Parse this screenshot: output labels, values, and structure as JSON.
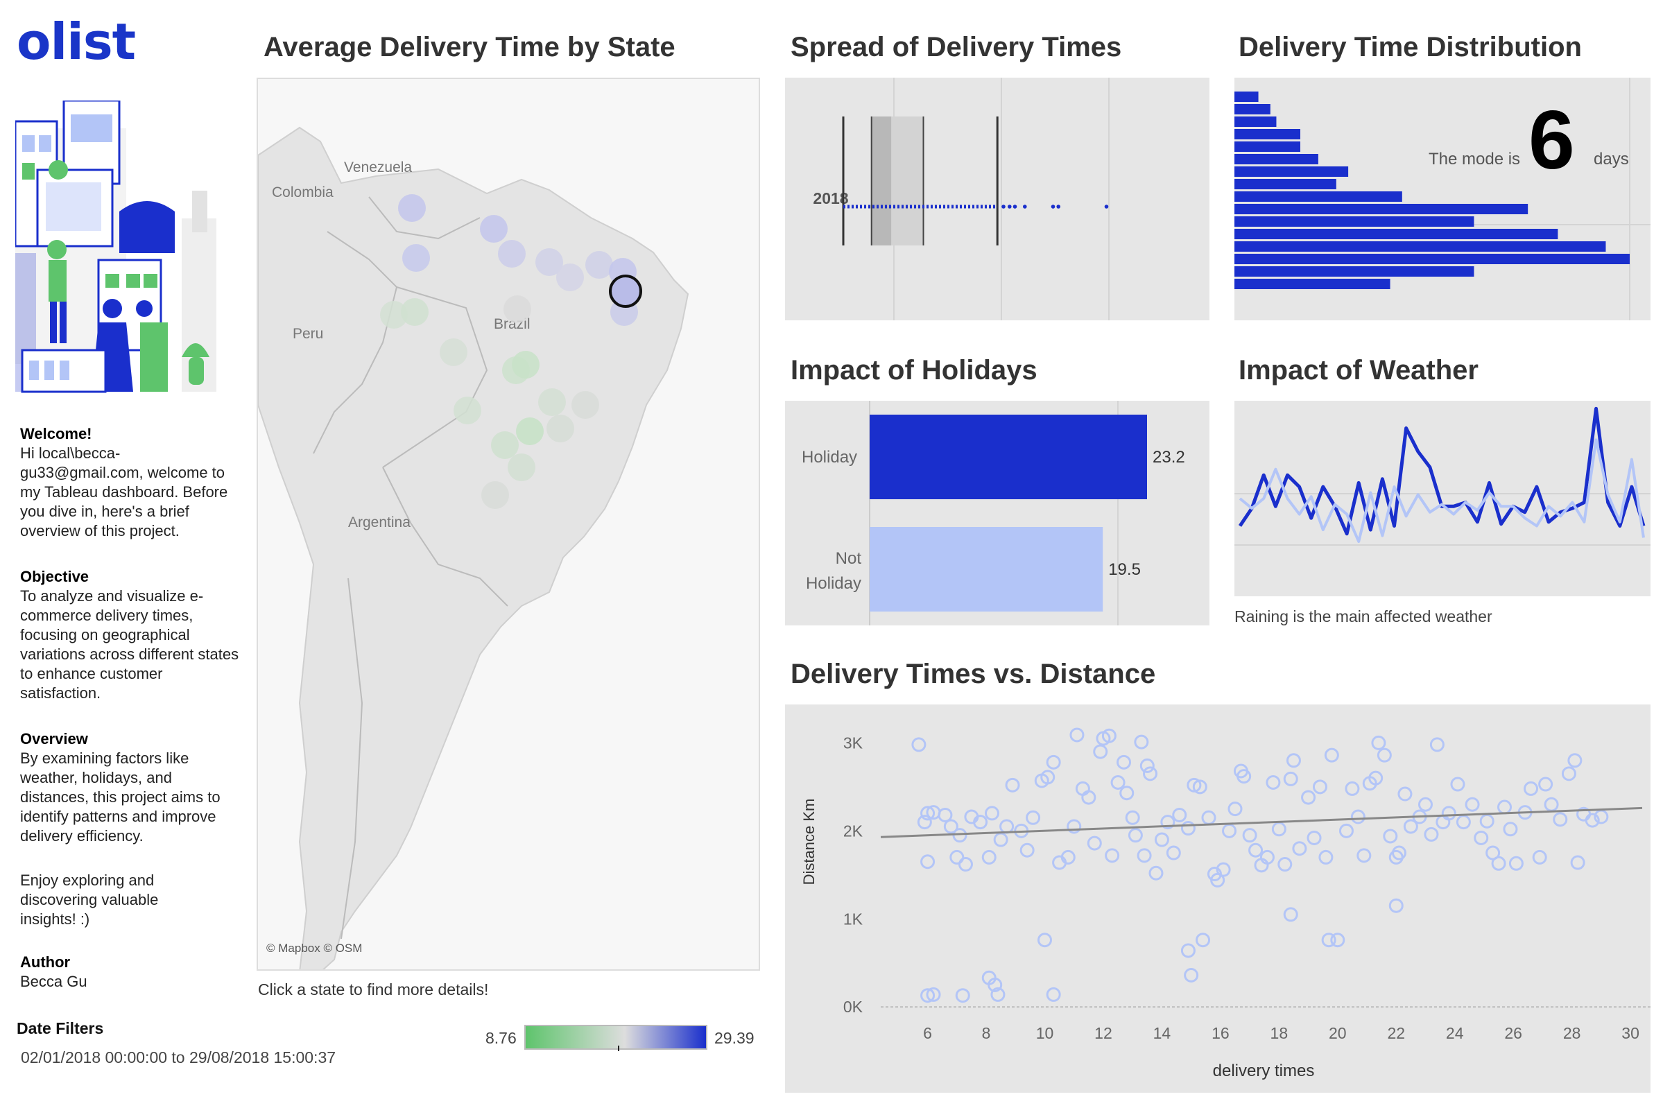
{
  "brand": {
    "logo": "olist"
  },
  "sidebar": {
    "welcome_head": "Welcome!",
    "welcome_text": "Hi local\\becca-gu33@gmail.com, welcome to my Tableau dashboard. Before you dive in, here's a brief overview of this project.",
    "objective_head": "Objective",
    "objective_text": "To analyze and visualize e-commerce delivery times, focusing on geographical variations across different states to enhance customer satisfaction.",
    "overview_head": "Overview",
    "overview_text": "By examining factors like weather, holidays, and distances, this project aims to identify patterns and improve delivery efficiency.",
    "enjoy_text": "Enjoy exploring and discovering valuable insights!  :)",
    "author_head": "Author",
    "author_name": "Becca Gu",
    "date_filter_head": "Date Filters",
    "date_filter_value": "02/01/2018 00:00:00 to 29/08/2018 15:00:37"
  },
  "colors": {
    "accent": "#1a2fcc",
    "light_accent": "#b3c5f7",
    "panel_bg": "#e6e6e6",
    "green": "#5ec46c"
  },
  "map": {
    "title": "Average Delivery Time by State",
    "labels": {
      "venezuela": "Venezuela",
      "colombia": "Colombia",
      "peru": "Peru",
      "brazil": "Brazil",
      "argentina": "Argentina"
    },
    "attribution": "© Mapbox © OSM",
    "hint": "Click a state to find more details!",
    "legend_min": "8.76",
    "legend_max": "29.39"
  },
  "chart_data": [
    {
      "id": "spread",
      "type": "box",
      "title": "Spread of Delivery Times",
      "category": "2018",
      "whisker_low": 0,
      "q1": 3.7,
      "median": 6.3,
      "q3": 10.5,
      "whisker_high": 20.2,
      "outliers": [
        21,
        21.8,
        22.5,
        23.8,
        27.5,
        28.2,
        34.5
      ]
    },
    {
      "id": "distribution",
      "type": "bar",
      "orientation": "horizontal",
      "title": "Delivery Time Distribution",
      "values": [
        4,
        6,
        7,
        11,
        11,
        14,
        19,
        17,
        28,
        49,
        40,
        54,
        62,
        66,
        40,
        26
      ],
      "annotation_prefix": "The mode is",
      "annotation_value": "6",
      "annotation_suffix": "days"
    },
    {
      "id": "holidays",
      "type": "bar",
      "orientation": "horizontal",
      "title": "Impact of Holidays",
      "categories": [
        "Holiday",
        "Not Holiday"
      ],
      "values": [
        23.2,
        19.5
      ],
      "value_labels": [
        "23.2",
        "19.5"
      ],
      "xlim": [
        0,
        30
      ]
    },
    {
      "id": "weather",
      "type": "line",
      "title": "Impact of Weather",
      "caption": "Raining is the main affected weather",
      "ylim": [
        0,
        10
      ],
      "series": [
        {
          "name": "dark",
          "values": [
            3.6,
            4.5,
            6.2,
            4.6,
            6.2,
            5.6,
            4.0,
            5.6,
            4.6,
            3.2,
            5.8,
            3.4,
            6.0,
            3.6,
            8.6,
            7.4,
            6.6,
            4.6,
            4.6,
            4.8,
            3.8,
            5.8,
            3.7,
            4.6,
            4.3,
            5.6,
            3.8,
            4.3,
            4.5,
            4.8,
            9.6,
            4.8,
            3.6,
            5.6,
            3.6
          ]
        },
        {
          "name": "light",
          "values": [
            5.0,
            4.5,
            5.0,
            6.5,
            5.0,
            4.2,
            5.1,
            3.4,
            4.7,
            4.2,
            2.8,
            5.3,
            3.1,
            5.6,
            4.1,
            5.2,
            4.3,
            4.7,
            4.2,
            4.8,
            4.4,
            5.3,
            4.6,
            4.6,
            4.0,
            3.6,
            4.6,
            4.1,
            4.8,
            3.8,
            8.0,
            5.2,
            3.8,
            7.0,
            3.0
          ]
        }
      ]
    },
    {
      "id": "scatter",
      "type": "scatter",
      "title": "Delivery Times vs. Distance",
      "xlabel": "delivery times",
      "ylabel": "Distance Km",
      "xticks": [
        "6",
        "8",
        "10",
        "12",
        "14",
        "16",
        "18",
        "20",
        "22",
        "24",
        "26",
        "28",
        "30"
      ],
      "yticks": [
        "0K",
        "1K",
        "2K",
        "3K"
      ],
      "xlim": [
        4.4,
        30.4
      ],
      "ylim": [
        -30,
        3200
      ],
      "trend": {
        "x0": 4.4,
        "y0": 1930,
        "x1": 30.4,
        "y1": 2260
      },
      "points": [
        [
          5.7,
          2980
        ],
        [
          6.0,
          2200
        ],
        [
          6.2,
          2210
        ],
        [
          6.0,
          1650
        ],
        [
          5.9,
          2100
        ],
        [
          6.0,
          130
        ],
        [
          6.2,
          140
        ],
        [
          7.2,
          130
        ],
        [
          6.6,
          2180
        ],
        [
          6.8,
          2050
        ],
        [
          7.0,
          1700
        ],
        [
          7.3,
          1620
        ],
        [
          7.1,
          1950
        ],
        [
          7.5,
          2160
        ],
        [
          7.8,
          2100
        ],
        [
          8.1,
          1700
        ],
        [
          8.2,
          2200
        ],
        [
          8.1,
          330
        ],
        [
          8.3,
          250
        ],
        [
          8.4,
          140
        ],
        [
          8.5,
          1900
        ],
        [
          8.7,
          2050
        ],
        [
          8.9,
          2520
        ],
        [
          9.2,
          2000
        ],
        [
          9.4,
          1780
        ],
        [
          9.6,
          2150
        ],
        [
          9.9,
          2570
        ],
        [
          10.1,
          2610
        ],
        [
          10.3,
          2780
        ],
        [
          10.0,
          760
        ],
        [
          10.3,
          140
        ],
        [
          10.5,
          1640
        ],
        [
          10.8,
          1700
        ],
        [
          11.0,
          2050
        ],
        [
          11.1,
          3090
        ],
        [
          11.3,
          2480
        ],
        [
          11.5,
          2380
        ],
        [
          11.7,
          1860
        ],
        [
          12.0,
          3050
        ],
        [
          12.2,
          3080
        ],
        [
          11.9,
          2900
        ],
        [
          12.3,
          1720
        ],
        [
          12.5,
          2550
        ],
        [
          12.7,
          2780
        ],
        [
          12.8,
          2430
        ],
        [
          13.0,
          2150
        ],
        [
          13.1,
          1950
        ],
        [
          13.3,
          3010
        ],
        [
          13.5,
          2740
        ],
        [
          13.6,
          2650
        ],
        [
          13.4,
          1720
        ],
        [
          13.8,
          1520
        ],
        [
          14.0,
          1900
        ],
        [
          14.2,
          2100
        ],
        [
          14.4,
          1750
        ],
        [
          14.6,
          2180
        ],
        [
          14.9,
          2030
        ],
        [
          15.1,
          2520
        ],
        [
          15.3,
          2500
        ],
        [
          15.6,
          2150
        ],
        [
          14.9,
          640
        ],
        [
          15.4,
          760
        ],
        [
          15.0,
          360
        ],
        [
          15.8,
          1510
        ],
        [
          15.9,
          1440
        ],
        [
          16.1,
          1560
        ],
        [
          16.3,
          2000
        ],
        [
          16.5,
          2250
        ],
        [
          16.7,
          2680
        ],
        [
          16.8,
          2620
        ],
        [
          17.0,
          1950
        ],
        [
          17.2,
          1780
        ],
        [
          17.4,
          1610
        ],
        [
          17.6,
          1700
        ],
        [
          17.8,
          2550
        ],
        [
          18.0,
          2020
        ],
        [
          18.2,
          1620
        ],
        [
          18.4,
          2590
        ],
        [
          18.5,
          2800
        ],
        [
          18.7,
          1800
        ],
        [
          18.4,
          1050
        ],
        [
          19.0,
          2380
        ],
        [
          19.2,
          1920
        ],
        [
          19.4,
          2500
        ],
        [
          19.6,
          1700
        ],
        [
          19.7,
          760
        ],
        [
          20.0,
          760
        ],
        [
          19.8,
          2860
        ],
        [
          20.3,
          2000
        ],
        [
          20.5,
          2480
        ],
        [
          20.7,
          2160
        ],
        [
          20.9,
          1720
        ],
        [
          21.1,
          2540
        ],
        [
          21.3,
          2600
        ],
        [
          21.4,
          3000
        ],
        [
          21.6,
          2860
        ],
        [
          21.8,
          1940
        ],
        [
          22.0,
          1700
        ],
        [
          22.1,
          1750
        ],
        [
          22.0,
          1150
        ],
        [
          22.3,
          2420
        ],
        [
          22.5,
          2050
        ],
        [
          22.8,
          2160
        ],
        [
          23.0,
          2300
        ],
        [
          23.2,
          1960
        ],
        [
          23.4,
          2980
        ],
        [
          23.6,
          2100
        ],
        [
          23.8,
          2200
        ],
        [
          24.1,
          2530
        ],
        [
          24.3,
          2100
        ],
        [
          24.6,
          2300
        ],
        [
          24.9,
          1920
        ],
        [
          25.1,
          2110
        ],
        [
          25.3,
          1750
        ],
        [
          25.5,
          1630
        ],
        [
          25.7,
          2270
        ],
        [
          25.9,
          2020
        ],
        [
          26.1,
          1630
        ],
        [
          26.4,
          2210
        ],
        [
          26.6,
          2480
        ],
        [
          26.9,
          1700
        ],
        [
          27.1,
          2530
        ],
        [
          27.3,
          2300
        ],
        [
          27.6,
          2130
        ],
        [
          27.9,
          2650
        ],
        [
          28.1,
          2800
        ],
        [
          28.2,
          1640
        ],
        [
          28.4,
          2190
        ],
        [
          28.7,
          2120
        ],
        [
          29.0,
          2160
        ]
      ]
    }
  ]
}
